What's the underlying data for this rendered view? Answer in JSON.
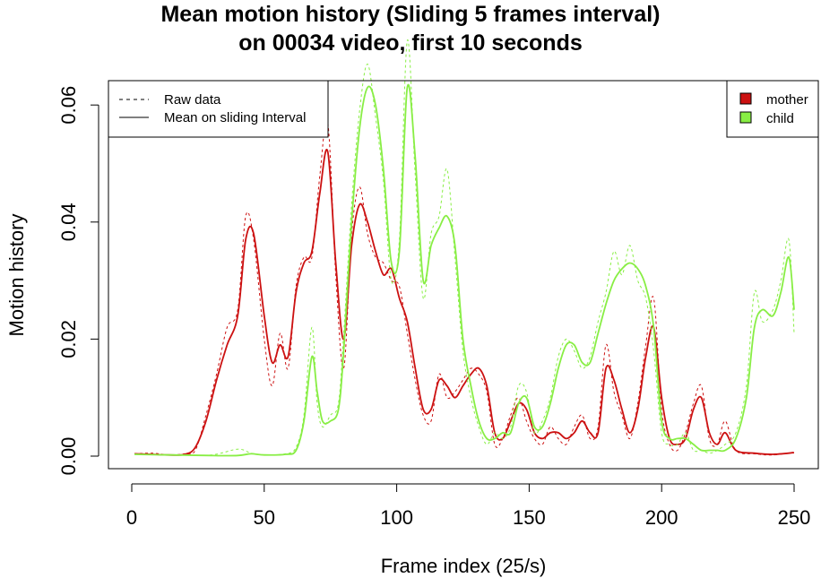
{
  "chart_data": {
    "type": "line",
    "title": [
      "Mean motion history (Sliding 5 frames interval)",
      "on 00034 video, first 10 seconds"
    ],
    "xlabel": "Frame index (25/s)",
    "ylabel": "Motion history",
    "xlim": [
      0,
      250
    ],
    "ylim": [
      0,
      0.066
    ],
    "xticks": [
      "0",
      "50",
      "100",
      "150",
      "200",
      "250"
    ],
    "yticks": [
      "0.00",
      "0.02",
      "0.04",
      "0.06"
    ],
    "grid": false,
    "line_legend": {
      "placement": "top-left",
      "entries": [
        {
          "label": "Raw data",
          "style": "dashed"
        },
        {
          "label": "Mean on sliding Interval",
          "style": "solid"
        }
      ]
    },
    "color_legend": {
      "placement": "top-right",
      "entries": [
        {
          "label": "mother",
          "color": "#CC1111"
        },
        {
          "label": "child",
          "color": "#88EE44"
        }
      ]
    },
    "series": [
      {
        "name": "mother",
        "color": "#CC1111",
        "mean": {
          "x": [
            1,
            8,
            14,
            20,
            24,
            28,
            32,
            36,
            40,
            43,
            46,
            50,
            53,
            56,
            59,
            62,
            65,
            68,
            71,
            74,
            77,
            80,
            83,
            86,
            89,
            92,
            95,
            98,
            101,
            104,
            107,
            110,
            113,
            116,
            119,
            122,
            125,
            128,
            131,
            134,
            137,
            140,
            143,
            146,
            149,
            152,
            155,
            158,
            161,
            164,
            167,
            170,
            173,
            176,
            179,
            182,
            185,
            188,
            191,
            194,
            197,
            200,
            203,
            206,
            209,
            212,
            215,
            218,
            221,
            224,
            228,
            235,
            242,
            250
          ],
          "y": [
            0.0004,
            0.0003,
            0.0002,
            0.0003,
            0.0015,
            0.006,
            0.013,
            0.019,
            0.024,
            0.037,
            0.038,
            0.024,
            0.016,
            0.019,
            0.017,
            0.028,
            0.033,
            0.035,
            0.045,
            0.052,
            0.033,
            0.02,
            0.036,
            0.043,
            0.04,
            0.035,
            0.031,
            0.032,
            0.027,
            0.023,
            0.015,
            0.008,
            0.008,
            0.013,
            0.012,
            0.01,
            0.012,
            0.014,
            0.015,
            0.012,
            0.004,
            0.003,
            0.006,
            0.009,
            0.008,
            0.004,
            0.003,
            0.004,
            0.004,
            0.003,
            0.004,
            0.006,
            0.004,
            0.004,
            0.015,
            0.013,
            0.008,
            0.004,
            0.008,
            0.017,
            0.022,
            0.01,
            0.003,
            0.002,
            0.003,
            0.008,
            0.01,
            0.004,
            0.002,
            0.004,
            0.001,
            0.0005,
            0.0003,
            0.0006
          ]
        },
        "raw": {
          "x": [
            1,
            8,
            14,
            20,
            24,
            28,
            32,
            36,
            40,
            43,
            46,
            50,
            53,
            56,
            59,
            62,
            65,
            68,
            71,
            74,
            77,
            80,
            83,
            86,
            89,
            92,
            95,
            98,
            101,
            104,
            107,
            110,
            113,
            116,
            119,
            122,
            125,
            128,
            131,
            134,
            137,
            140,
            143,
            146,
            149,
            152,
            155,
            158,
            161,
            164,
            167,
            170,
            173,
            176,
            179,
            182,
            185,
            188,
            191,
            194,
            197,
            200,
            203,
            206,
            209,
            212,
            215,
            218,
            221,
            224,
            228,
            235,
            242,
            250
          ],
          "y": [
            0.0004,
            0.0005,
            0.0002,
            0.0004,
            0.001,
            0.007,
            0.014,
            0.022,
            0.025,
            0.041,
            0.037,
            0.02,
            0.012,
            0.021,
            0.015,
            0.029,
            0.034,
            0.034,
            0.048,
            0.057,
            0.031,
            0.015,
            0.038,
            0.046,
            0.038,
            0.034,
            0.033,
            0.03,
            0.029,
            0.021,
            0.013,
            0.007,
            0.006,
            0.014,
            0.01,
            0.011,
            0.013,
            0.015,
            0.014,
            0.011,
            0.002,
            0.003,
            0.007,
            0.01,
            0.006,
            0.003,
            0.002,
            0.005,
            0.003,
            0.002,
            0.005,
            0.007,
            0.003,
            0.005,
            0.019,
            0.011,
            0.007,
            0.003,
            0.009,
            0.019,
            0.027,
            0.008,
            0.002,
            0.001,
            0.004,
            0.009,
            0.012,
            0.003,
            0.002,
            0.006,
            0.001,
            0.0004,
            0.0002,
            0.0007
          ]
        }
      },
      {
        "name": "child",
        "color": "#88EE44",
        "mean": {
          "x": [
            1,
            15,
            30,
            40,
            45,
            50,
            58,
            62,
            65,
            68,
            70,
            72,
            75,
            78,
            80,
            83,
            86,
            89,
            92,
            95,
            98,
            101,
            104,
            107,
            110,
            113,
            116,
            119,
            122,
            125,
            128,
            131,
            134,
            137,
            140,
            143,
            146,
            149,
            152,
            155,
            158,
            161,
            164,
            167,
            170,
            173,
            176,
            179,
            182,
            185,
            188,
            191,
            194,
            197,
            200,
            203,
            206,
            209,
            212,
            215,
            218,
            221,
            224,
            228,
            232,
            235,
            238,
            242,
            245,
            248,
            250
          ],
          "y": [
            0.0003,
            0.0002,
            0.0001,
            0.0001,
            0.0004,
            0.0002,
            0.0003,
            0.001,
            0.006,
            0.017,
            0.011,
            0.006,
            0.006,
            0.008,
            0.018,
            0.04,
            0.056,
            0.063,
            0.06,
            0.049,
            0.033,
            0.035,
            0.063,
            0.051,
            0.03,
            0.036,
            0.039,
            0.041,
            0.036,
            0.02,
            0.012,
            0.006,
            0.003,
            0.003,
            0.004,
            0.004,
            0.009,
            0.01,
            0.005,
            0.005,
            0.009,
            0.015,
            0.019,
            0.019,
            0.016,
            0.016,
            0.021,
            0.026,
            0.03,
            0.032,
            0.033,
            0.032,
            0.029,
            0.022,
            0.006,
            0.003,
            0.003,
            0.003,
            0.002,
            0.001,
            0.001,
            0.001,
            0.001,
            0.003,
            0.01,
            0.022,
            0.025,
            0.024,
            0.028,
            0.034,
            0.025
          ]
        },
        "raw": {
          "x": [
            1,
            15,
            30,
            40,
            45,
            50,
            58,
            62,
            65,
            68,
            70,
            72,
            75,
            78,
            80,
            83,
            86,
            89,
            92,
            95,
            98,
            101,
            104,
            107,
            110,
            113,
            116,
            119,
            122,
            125,
            128,
            131,
            134,
            137,
            140,
            143,
            146,
            149,
            152,
            155,
            158,
            161,
            164,
            167,
            170,
            173,
            176,
            179,
            182,
            185,
            188,
            191,
            194,
            197,
            200,
            203,
            206,
            209,
            212,
            215,
            218,
            221,
            224,
            228,
            232,
            235,
            238,
            242,
            245,
            248,
            250
          ],
          "y": [
            0.0003,
            0.0002,
            0.0002,
            0.0012,
            0.0005,
            0.0002,
            0.0004,
            0.0015,
            0.007,
            0.022,
            0.009,
            0.005,
            0.007,
            0.009,
            0.021,
            0.043,
            0.059,
            0.067,
            0.058,
            0.047,
            0.03,
            0.037,
            0.071,
            0.048,
            0.027,
            0.038,
            0.041,
            0.049,
            0.034,
            0.018,
            0.01,
            0.005,
            0.002,
            0.004,
            0.003,
            0.005,
            0.012,
            0.011,
            0.004,
            0.006,
            0.01,
            0.017,
            0.02,
            0.018,
            0.015,
            0.017,
            0.023,
            0.028,
            0.035,
            0.031,
            0.036,
            0.03,
            0.027,
            0.018,
            0.004,
            0.002,
            0.002,
            0.004,
            0.001,
            0.001,
            0.0005,
            0.001,
            0.002,
            0.004,
            0.012,
            0.028,
            0.023,
            0.025,
            0.03,
            0.037,
            0.021
          ]
        }
      }
    ]
  }
}
